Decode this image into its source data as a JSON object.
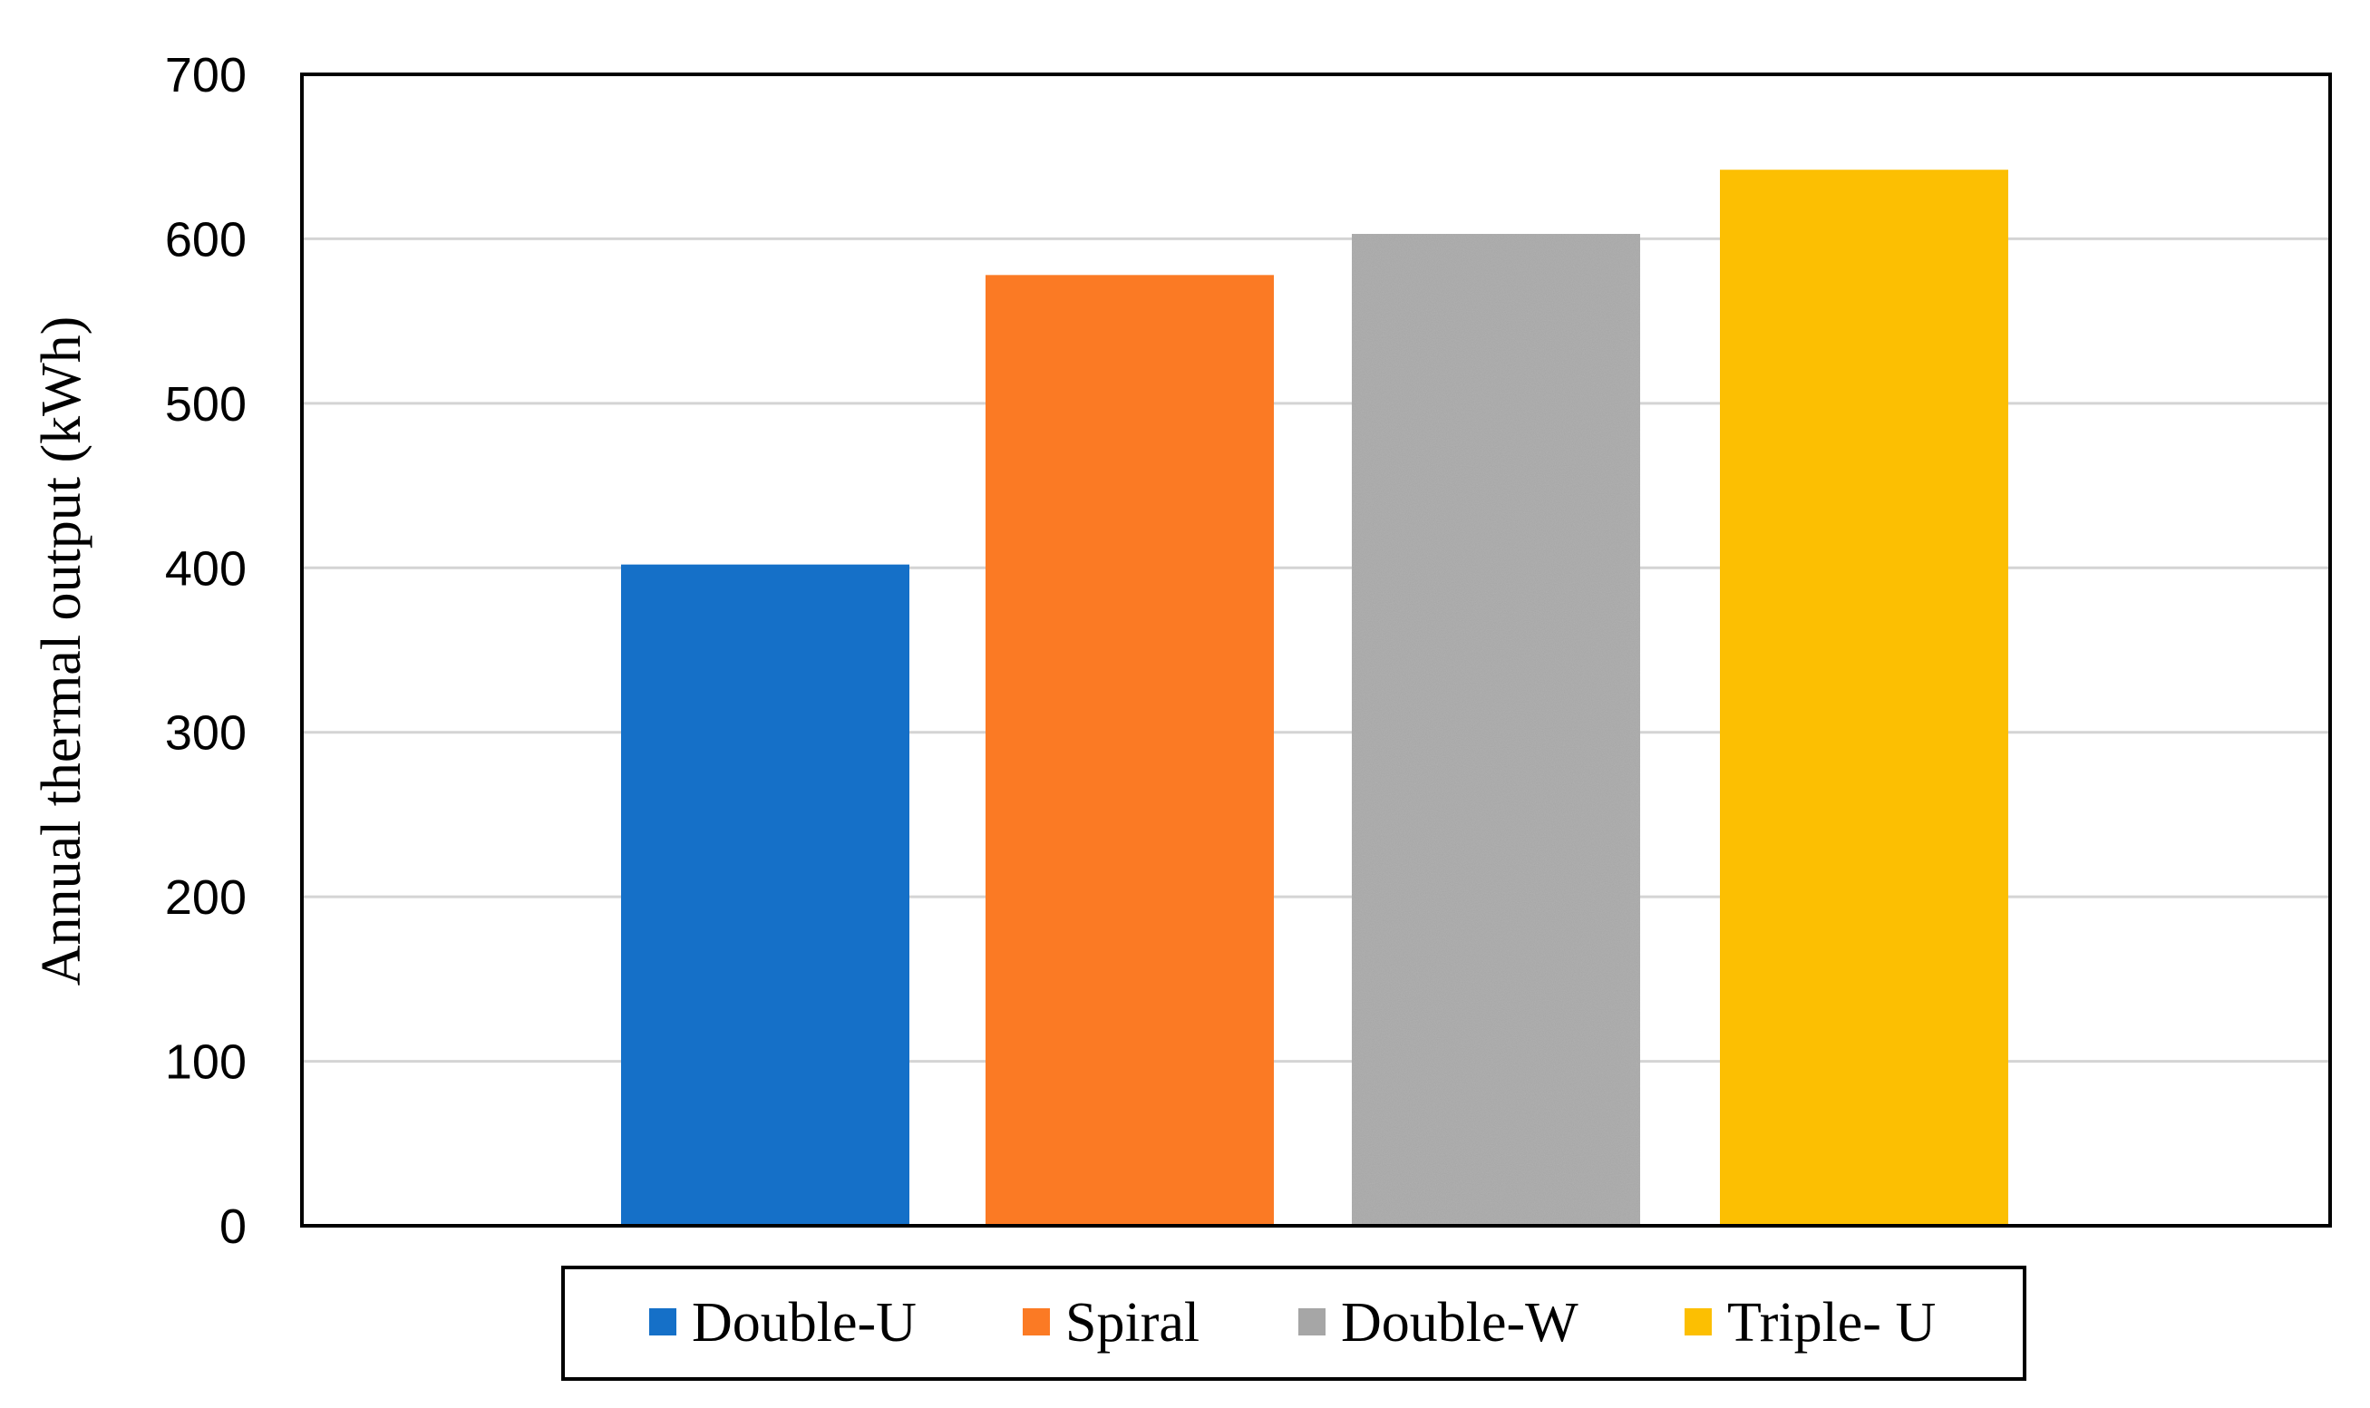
{
  "chart_data": {
    "type": "bar",
    "title": "",
    "xlabel": "",
    "ylabel": "Annual thermal output (kWh)",
    "ylim": [
      0,
      700
    ],
    "yticks": [
      0,
      100,
      200,
      300,
      400,
      500,
      600,
      700
    ],
    "ytick_labels": [
      "0",
      "100",
      "200",
      "300",
      "400",
      "500",
      "600",
      "700"
    ],
    "grid": true,
    "legend_position": "bottom",
    "series": [
      {
        "name": "Double-U",
        "value": 402,
        "color": "#1570C8"
      },
      {
        "name": "Spiral",
        "value": 578,
        "color": "#FB7A24"
      },
      {
        "name": "Double-W",
        "value": 603,
        "color": "#A6A6A6"
      },
      {
        "name": "Triple- U",
        "value": 642,
        "color": "#FCBF02"
      }
    ]
  }
}
